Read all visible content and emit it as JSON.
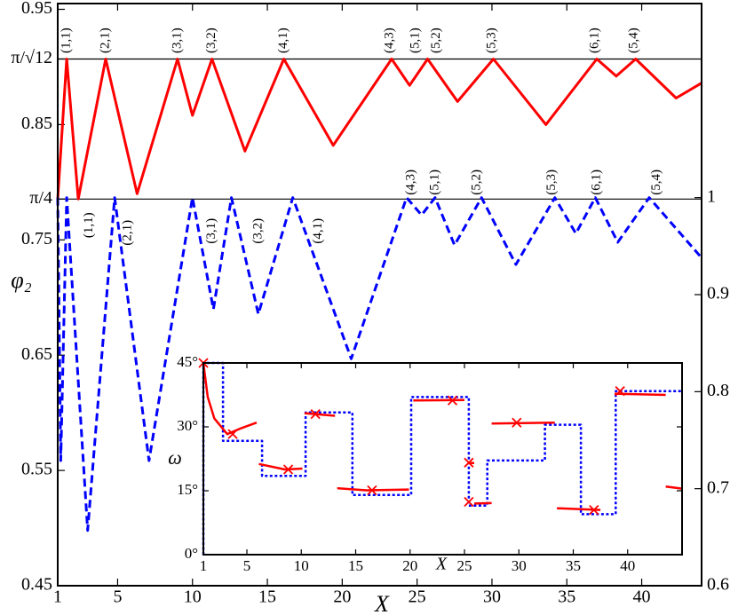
{
  "chart_data": [
    {
      "type": "line",
      "x_label": "X",
      "y_label": "φ₂",
      "xlim": [
        1,
        44
      ],
      "xticks": [
        1,
        5,
        10,
        15,
        20,
        25,
        30,
        35,
        40
      ],
      "ylim": [
        0.45,
        0.955
      ],
      "yticks": [
        0.45,
        0.55,
        0.65,
        0.75,
        0.85,
        0.95,
        {
          "value": 0.9069,
          "label": "π/√12"
        },
        {
          "value": 0.7854,
          "label": "π/4"
        }
      ],
      "y2lim": [
        0.6,
        1.2
      ],
      "y2ticks": [
        0.6,
        0.7,
        0.8,
        0.9,
        1
      ],
      "reference_lines": [
        0.9069,
        0.7854
      ],
      "series": [
        {
          "color": "#ff0000",
          "style": "solid",
          "x": [
            1,
            1.6,
            2.37,
            4.2,
            6.3,
            9.0,
            10.0,
            11.3,
            13.5,
            16.1,
            19.4,
            23.3,
            24.5,
            25.7,
            27.7,
            30.1,
            33.6,
            37.0,
            38.3,
            39.6,
            42.3,
            44
          ],
          "values": [
            0.7854,
            0.9069,
            0.7854,
            0.9069,
            0.79,
            0.9069,
            0.858,
            0.9069,
            0.827,
            0.9069,
            0.832,
            0.9069,
            0.884,
            0.9069,
            0.87,
            0.9069,
            0.85,
            0.9069,
            0.892,
            0.9069,
            0.873,
            0.886
          ]
        },
        {
          "color": "#0000ff",
          "style": "dashed",
          "axis": "y2",
          "x": [
            1,
            1.2,
            1.6,
            3.0,
            4.8,
            7.1,
            10.0,
            11.4,
            12.6,
            14.4,
            16.7,
            20.6,
            24.3,
            25.3,
            26.2,
            27.5,
            29.3,
            31.6,
            34.2,
            35.6,
            36.9,
            38.4,
            40.5,
            44
          ],
          "values": [
            1,
            0.729,
            1,
            0.657,
            1,
            0.729,
            1,
            0.885,
            1,
            0.88,
            1,
            0.834,
            1,
            0.982,
            1,
            0.951,
            1,
            0.931,
            1,
            0.963,
            1,
            0.954,
            1,
            0.938
          ]
        }
      ],
      "annotations": [
        {
          "text": "(1,1)",
          "x": 1.6,
          "y": 0.923,
          "color": "#000000"
        },
        {
          "text": "(2,1)",
          "x": 4.2,
          "y": 0.923
        },
        {
          "text": "(3,1)",
          "x": 9.0,
          "y": 0.923
        },
        {
          "text": "(3,2)",
          "x": 11.3,
          "y": 0.923
        },
        {
          "text": "(4,1)",
          "x": 16.1,
          "y": 0.923
        },
        {
          "text": "(4,3)",
          "x": 23.2,
          "y": 0.923
        },
        {
          "text": "(5,1)",
          "x": 24.9,
          "y": 0.923
        },
        {
          "text": "(5,2)",
          "x": 26.3,
          "y": 0.923
        },
        {
          "text": "(5,3)",
          "x": 30.0,
          "y": 0.923
        },
        {
          "text": "(6,1)",
          "x": 36.9,
          "y": 0.923
        },
        {
          "text": "(5,4)",
          "x": 39.5,
          "y": 0.923
        },
        {
          "text": "(1,1)",
          "x": 3.1,
          "y": 0.7627
        },
        {
          "text": "(2,1)",
          "x": 5.7,
          "y": 0.7562
        },
        {
          "text": "(3,1)",
          "x": 11.3,
          "y": 0.7577
        },
        {
          "text": "(3,2)",
          "x": 14.4,
          "y": 0.7577
        },
        {
          "text": "(4,1)",
          "x": 18.4,
          "y": 0.7577
        },
        {
          "text": "(4,3)",
          "x": 24.6,
          "y": 0.8
        },
        {
          "text": "(5,1)",
          "x": 26.2,
          "y": 0.8
        },
        {
          "text": "(5,2)",
          "x": 29.0,
          "y": 0.8
        },
        {
          "text": "(5,3)",
          "x": 34.0,
          "y": 0.8
        },
        {
          "text": "(6,1)",
          "x": 37.0,
          "y": 0.8
        },
        {
          "text": "(5,4)",
          "x": 41.0,
          "y": 0.8
        }
      ]
    },
    {
      "type": "line",
      "x_label": "X",
      "y_label": "ω",
      "xlim": [
        1,
        45
      ],
      "xticks": [
        1,
        5,
        10,
        15,
        20,
        25,
        30,
        35,
        40
      ],
      "ylim": [
        0,
        45
      ],
      "yticks": [
        {
          "value": 0,
          "label": "0°"
        },
        {
          "value": 15,
          "label": "15°"
        },
        {
          "value": 30,
          "label": "30°"
        },
        {
          "value": 45,
          "label": "45°"
        }
      ],
      "series": [
        {
          "color": "#0000ff",
          "style": "dotted",
          "x": [
            1,
            1,
            2.8,
            2.8,
            6.4,
            6.4,
            10.4,
            10.4,
            14.7,
            14.7,
            20.1,
            20.1,
            25.4,
            25.4,
            27.1,
            27.1,
            32.4,
            32.4,
            35.7,
            35.7,
            38.9,
            38.9,
            45
          ],
          "values": [
            0,
            45,
            45,
            26.7,
            26.7,
            18.5,
            18.5,
            33.4,
            33.4,
            14,
            14,
            37,
            37,
            11.5,
            11.5,
            22.1,
            22.1,
            30.5,
            30.5,
            9.5,
            9.5,
            38.4,
            38.4
          ]
        },
        {
          "color": "#ff0000",
          "style": "solid",
          "x": [
            1,
            1.4,
            2,
            3.2,
            4.5,
            5.9,
            null,
            6.1,
            8.5,
            10.1,
            null,
            10.3,
            13.1,
            null,
            13.3,
            16,
            19.9,
            null,
            20.3,
            25,
            null,
            25.3,
            25.9,
            null,
            25.9,
            27.5,
            null,
            27.5,
            33.3,
            null,
            33.5,
            37.5,
            null,
            38.8,
            43.5,
            null,
            43.5,
            45
          ],
          "values": [
            45,
            37,
            32,
            28.3,
            29.7,
            31,
            null,
            21.3,
            20,
            20.2,
            null,
            33.2,
            32.6,
            null,
            15.6,
            15.1,
            15.3,
            null,
            36.2,
            36.3,
            null,
            21.5,
            21.5,
            null,
            12,
            12.1,
            null,
            30.8,
            31,
            null,
            10.9,
            10.5,
            null,
            37.8,
            37.5,
            null,
            16,
            15.5
          ]
        }
      ],
      "markers": {
        "color": "#ff0000",
        "x": [
          1,
          3.7,
          8.8,
          11.3,
          16.5,
          23.9,
          25.4,
          25.4,
          29.8,
          36.9,
          39.3
        ],
        "values": [
          45,
          28.3,
          20,
          33,
          15.1,
          36.2,
          21.6,
          12.4,
          31,
          10.5,
          38.4
        ]
      }
    }
  ]
}
